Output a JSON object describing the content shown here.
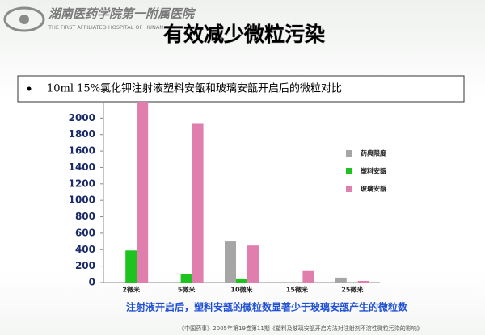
{
  "header": {
    "logo_text": "湖南医药学院第一附属医院",
    "logo_subtext": "THE FIRST AFFILIATED HOSPITAL OF HUNAN",
    "title": "有效减少微粒污染"
  },
  "chart_data": {
    "type": "bar",
    "title": "10ml 15%氯化钾注射液塑料安瓿和玻璃安瓿开启后的微粒对比",
    "categories": [
      "2微米",
      "5微米",
      "10微米",
      "15微米",
      "25微米"
    ],
    "series": [
      {
        "name": "药典限度",
        "color": "#a6a6a6",
        "values": [
          null,
          null,
          500,
          null,
          60
        ]
      },
      {
        "name": "塑料安瓿",
        "color": "#1fc31f",
        "values": [
          390,
          100,
          40,
          null,
          null
        ]
      },
      {
        "name": "玻璃安瓿",
        "color": "#e07fae",
        "values": [
          2200,
          1940,
          450,
          140,
          20
        ]
      }
    ],
    "ylim": [
      0,
      2200
    ],
    "yticks": [
      0,
      200,
      400,
      600,
      800,
      1000,
      1200,
      1400,
      1600,
      1800,
      2000
    ],
    "legend": "right",
    "annotation": "注射液开启后，塑料安瓿的微粒数显著少于玻璃安瓿产生的微粒数",
    "source": "《中国药事》2005年第19卷第11期《塑料及玻璃安瓿开启方法对注射剂不溶性微粒污染的影响》"
  }
}
